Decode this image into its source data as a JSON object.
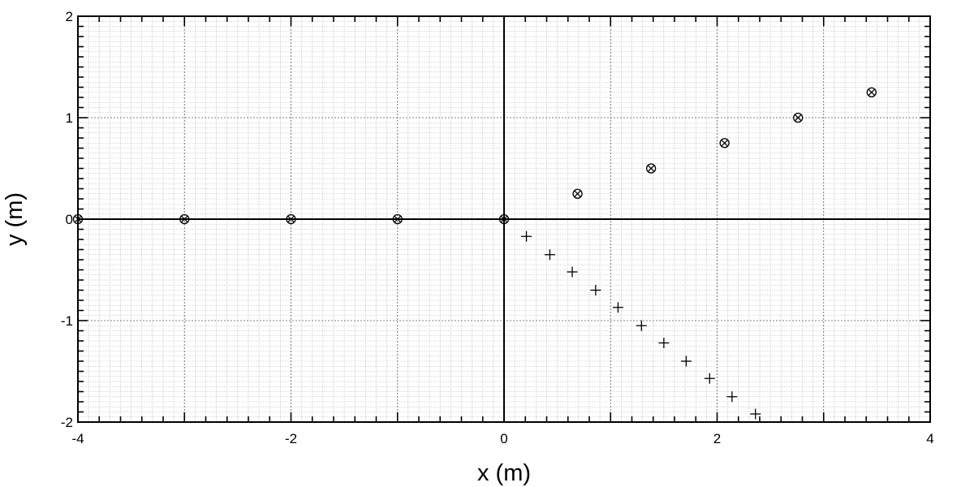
{
  "chart_data": {
    "type": "scatter",
    "title": "",
    "xlabel": "x (m)",
    "ylabel": "y (m)",
    "xlim": [
      -4,
      4
    ],
    "ylim": [
      -2,
      2
    ],
    "x_major_ticks": [
      -4,
      -2,
      0,
      2,
      4
    ],
    "x_tick_labels": [
      "-4",
      "-2",
      "0",
      "2",
      "4"
    ],
    "y_major_ticks": [
      -2,
      -1,
      0,
      1,
      2
    ],
    "y_tick_labels": [
      "-2",
      "-1",
      "0",
      "1",
      "2"
    ],
    "grid": true,
    "legend": "none",
    "series": [
      {
        "marker": "circle-x",
        "x": [
          -4,
          -3,
          -2,
          -1,
          0,
          0.69,
          1.38,
          2.07,
          2.76,
          3.45
        ],
        "y": [
          0,
          0,
          0,
          0,
          0,
          0.25,
          0.5,
          0.75,
          1.0,
          1.25
        ]
      },
      {
        "marker": "plus",
        "x": [
          0.21,
          0.43,
          0.64,
          0.86,
          1.07,
          1.29,
          1.5,
          1.71,
          1.93,
          2.14,
          2.36
        ],
        "y": [
          -0.17,
          -0.35,
          -0.52,
          -0.7,
          -0.87,
          -1.05,
          -1.22,
          -1.4,
          -1.57,
          -1.75,
          -1.92
        ]
      }
    ]
  }
}
